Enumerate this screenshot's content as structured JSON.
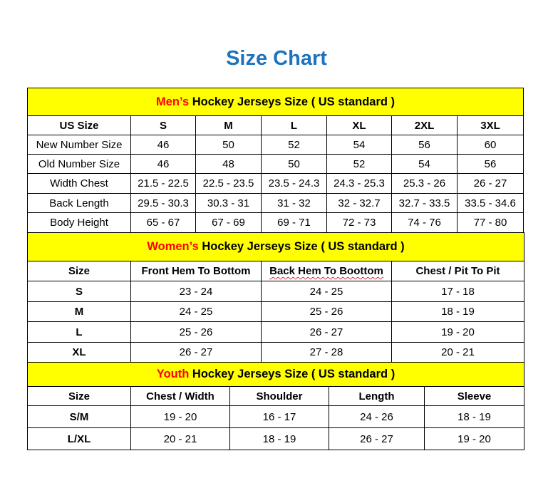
{
  "title": "Size Chart",
  "colors": {
    "title": "#1e73be",
    "header_bg": "#ffff00",
    "highlight": "#ff0000"
  },
  "men": {
    "heading_highlight": "Men’s",
    "heading_rest": " Hockey Jerseys Size ( US standard )",
    "columns": [
      "US Size",
      "S",
      "M",
      "L",
      "XL",
      "2XL",
      "3XL"
    ],
    "rows": [
      [
        "New Number Size",
        "46",
        "50",
        "52",
        "54",
        "56",
        "60"
      ],
      [
        "Old Number Size",
        "46",
        "48",
        "50",
        "52",
        "54",
        "56"
      ],
      [
        "Width Chest",
        "21.5 - 22.5",
        "22.5 - 23.5",
        "23.5 - 24.3",
        "24.3 - 25.3",
        "25.3 - 26",
        "26 - 27"
      ],
      [
        "Back Length",
        "29.5 - 30.3",
        "30.3 - 31",
        "31 - 32",
        "32 - 32.7",
        "32.7 - 33.5",
        "33.5 - 34.6"
      ],
      [
        "Body Height",
        "65 - 67",
        "67 - 69",
        "69 - 71",
        "72 - 73",
        "74 - 76",
        "77 - 80"
      ]
    ]
  },
  "women": {
    "heading_highlight": "Women’s",
    "heading_rest": " Hockey Jerseys Size ( US standard )",
    "columns": [
      "Size",
      "Front Hem To Bottom",
      "Back Hem To Boottom",
      "Chest / Pit To Pit"
    ],
    "rows": [
      [
        "S",
        "23 - 24",
        "24 - 25",
        "17 - 18"
      ],
      [
        "M",
        "24 - 25",
        "25 - 26",
        "18 - 19"
      ],
      [
        "L",
        "25 - 26",
        "26 - 27",
        "19 - 20"
      ],
      [
        "XL",
        "26 - 27",
        "27 - 28",
        "20 - 21"
      ]
    ]
  },
  "youth": {
    "heading_highlight": "Youth",
    "heading_rest": " Hockey Jerseys Size ( US standard )",
    "columns": [
      "Size",
      "Chest / Width",
      "Shoulder",
      "Length",
      "Sleeve"
    ],
    "rows": [
      [
        "S/M",
        "19 - 20",
        "16 - 17",
        "24 - 26",
        "18 - 19"
      ],
      [
        "L/XL",
        "20 - 21",
        "18 - 19",
        "26 - 27",
        "19 - 20"
      ]
    ]
  }
}
